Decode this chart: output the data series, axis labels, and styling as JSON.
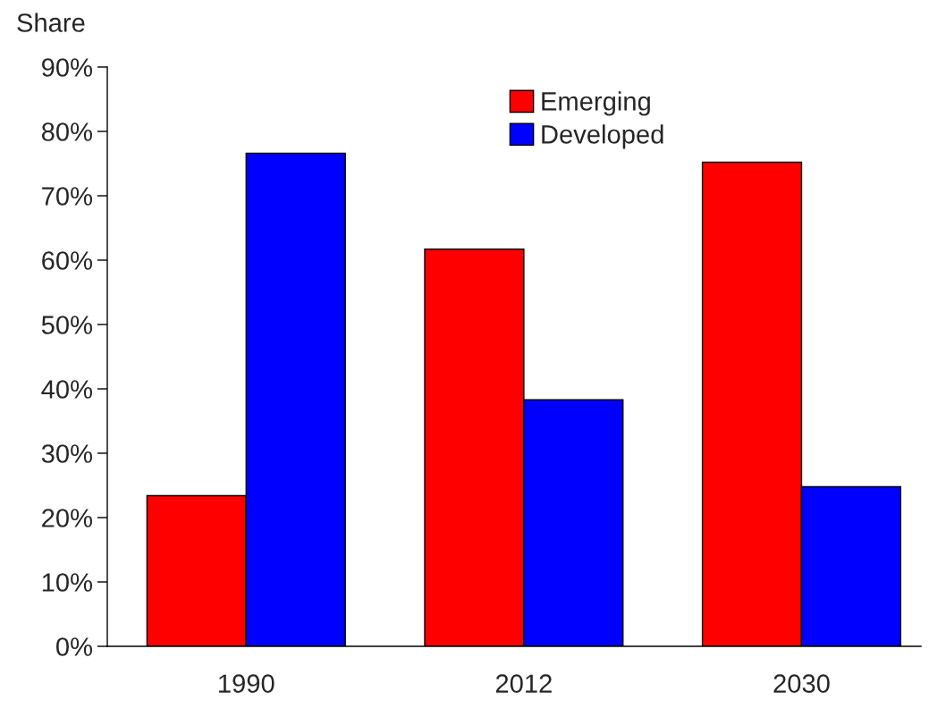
{
  "chart_data": {
    "type": "bar",
    "ylabel": "Share",
    "categories": [
      "1990",
      "2012",
      "2030"
    ],
    "series": [
      {
        "name": "Emerging",
        "color": "#ff0000",
        "values": [
          23.4,
          61.7,
          75.2
        ]
      },
      {
        "name": "Developed",
        "color": "#0000ff",
        "values": [
          76.6,
          38.3,
          24.8
        ]
      }
    ],
    "ylim": [
      0,
      90
    ],
    "yticks": [
      {
        "value": 0,
        "label": "0%"
      },
      {
        "value": 10,
        "label": "10%"
      },
      {
        "value": 20,
        "label": "20%"
      },
      {
        "value": 30,
        "label": "30%"
      },
      {
        "value": 40,
        "label": "40%"
      },
      {
        "value": 50,
        "label": "50%"
      },
      {
        "value": 60,
        "label": "60%"
      },
      {
        "value": 70,
        "label": "70%"
      },
      {
        "value": 80,
        "label": "80%"
      },
      {
        "value": 90,
        "label": "90%"
      }
    ],
    "grid": false,
    "legend": "top"
  }
}
